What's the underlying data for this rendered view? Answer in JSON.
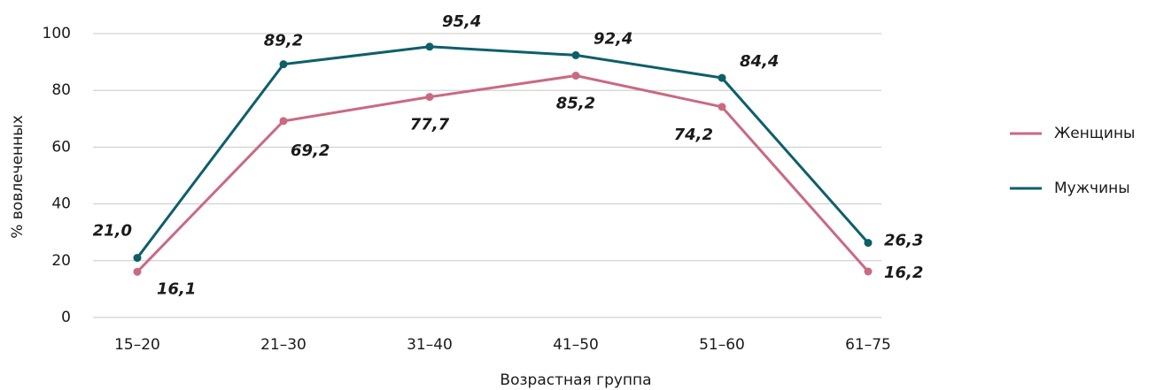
{
  "chart_data": {
    "type": "line",
    "xlabel": "Возрастная группа",
    "ylabel": "% вовлеченных",
    "categories": [
      "15–20",
      "21–30",
      "31–40",
      "41–50",
      "51–60",
      "61–75"
    ],
    "series": [
      {
        "name": "Женщины",
        "color": "#c96a82",
        "values": [
          16.1,
          69.2,
          77.7,
          85.2,
          74.2,
          16.2
        ],
        "value_labels": [
          "16,1",
          "69,2",
          "77,7",
          "85,2",
          "74,2",
          "16,2"
        ]
      },
      {
        "name": "Мужчины",
        "color": "#0d5f6a",
        "values": [
          21.0,
          89.2,
          95.4,
          92.4,
          84.4,
          26.3
        ],
        "value_labels": [
          "21,0",
          "89,2",
          "95,4",
          "92,4",
          "84,4",
          "26,3"
        ]
      }
    ],
    "ylim": [
      0,
      100
    ],
    "yticks": [
      0,
      20,
      40,
      60,
      80,
      100
    ],
    "grid": true,
    "legend": "right"
  }
}
